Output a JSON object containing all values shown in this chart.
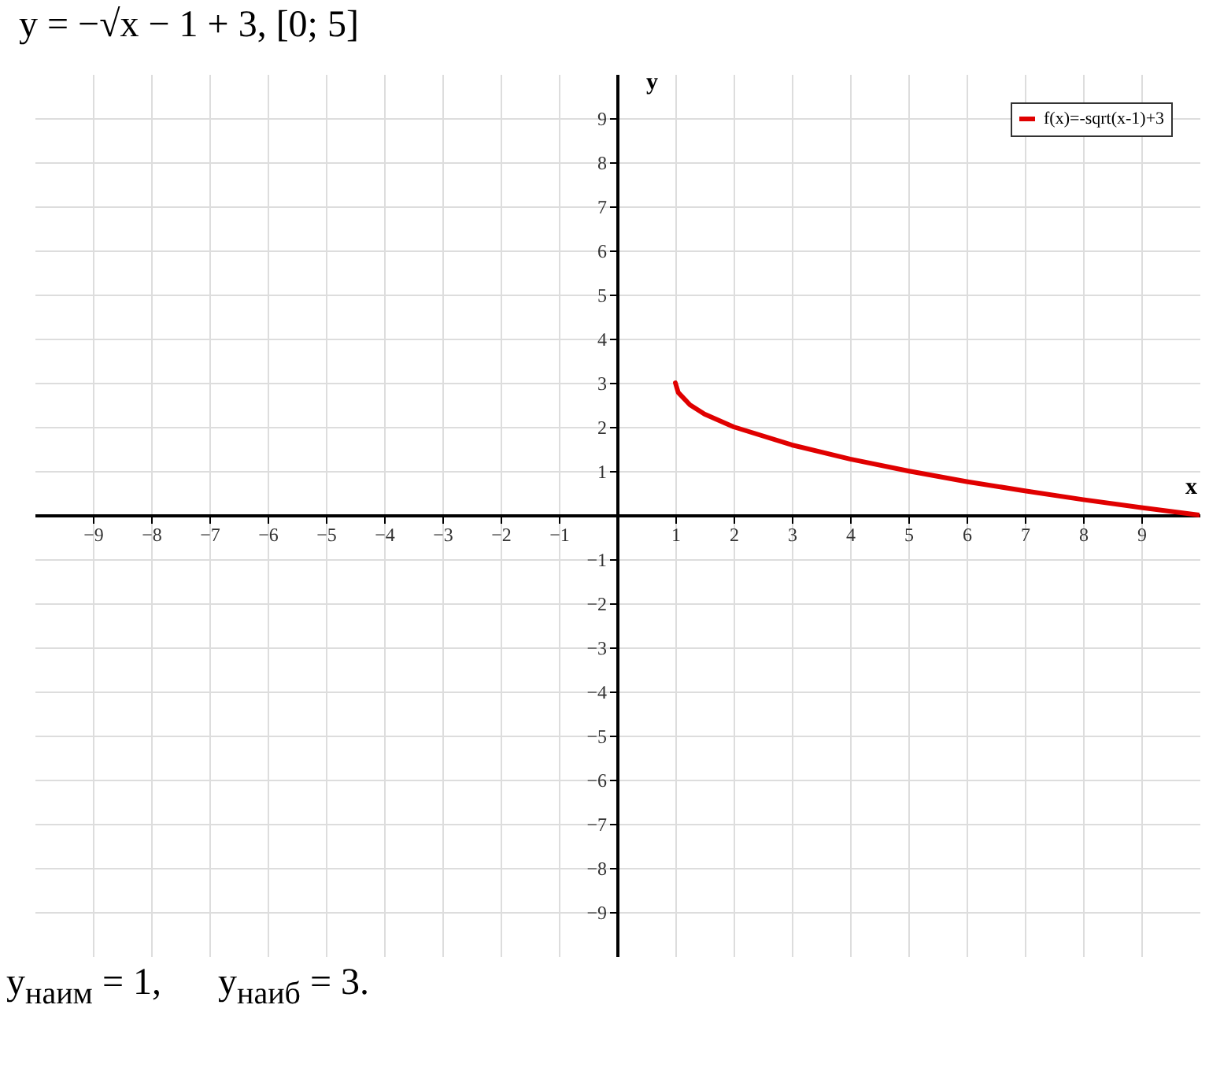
{
  "chart_data": {
    "type": "line",
    "title": "y = −√x − 1 + 3,      [0; 5]",
    "xlabel": "x",
    "ylabel": "y",
    "x": [
      1,
      1.05,
      1.25,
      1.5,
      2,
      3,
      4,
      5,
      6,
      7,
      8,
      9,
      10
    ],
    "series": [
      {
        "name": "f(x)=-sqrt(x-1)+3",
        "color": "#e00000",
        "values": [
          3,
          2.78,
          2.5,
          2.29,
          2,
          1.59,
          1.27,
          1,
          0.76,
          0.55,
          0.35,
          0.17,
          0
        ]
      }
    ],
    "xlim": [
      -10,
      10
    ],
    "ylim": [
      -10,
      10
    ],
    "xticks": [
      -9,
      -8,
      -7,
      -6,
      -5,
      -4,
      -3,
      -2,
      -1,
      1,
      2,
      3,
      4,
      5,
      6,
      7,
      8,
      9
    ],
    "yticks": [
      -9,
      -8,
      -7,
      -6,
      -5,
      -4,
      -3,
      -2,
      -1,
      1,
      2,
      3,
      4,
      5,
      6,
      7,
      8,
      9
    ],
    "grid": true,
    "legend": "top right",
    "marker": "none",
    "line_style": "solid",
    "annotations": [
      "y$_{наим}$ = 1,      y$_{наиб}$ = 3."
    ]
  }
}
